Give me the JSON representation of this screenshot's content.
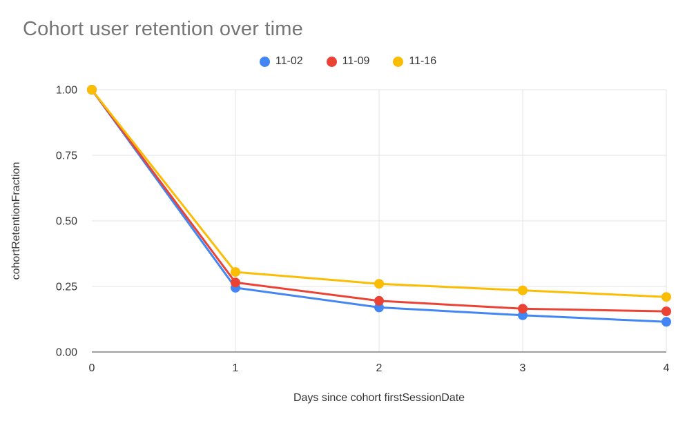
{
  "page": {
    "background": "#ffffff"
  },
  "chart_data": {
    "type": "line",
    "title": "Cohort user retention over time",
    "xlabel": "Days since cohort firstSessionDate",
    "ylabel": "cohortRetentionFraction",
    "x": [
      0,
      1,
      2,
      3,
      4
    ],
    "xlim": [
      0,
      4
    ],
    "ylim": [
      0,
      1
    ],
    "x_tick_labels": [
      "0",
      "1",
      "2",
      "3",
      "4"
    ],
    "y_ticks": [
      0,
      0.25,
      0.5,
      0.75,
      1
    ],
    "y_tick_labels": [
      "0.00",
      "0.25",
      "0.50",
      "0.75",
      "1.00"
    ],
    "grid": true,
    "legend_position": "top",
    "series": [
      {
        "name": "11-02",
        "color": "#4285F4",
        "values": [
          1.0,
          0.245,
          0.17,
          0.14,
          0.115
        ]
      },
      {
        "name": "11-09",
        "color": "#EA4335",
        "values": [
          1.0,
          0.265,
          0.195,
          0.165,
          0.155
        ]
      },
      {
        "name": "11-16",
        "color": "#FBBC04",
        "values": [
          1.0,
          0.305,
          0.26,
          0.235,
          0.21
        ]
      }
    ]
  }
}
